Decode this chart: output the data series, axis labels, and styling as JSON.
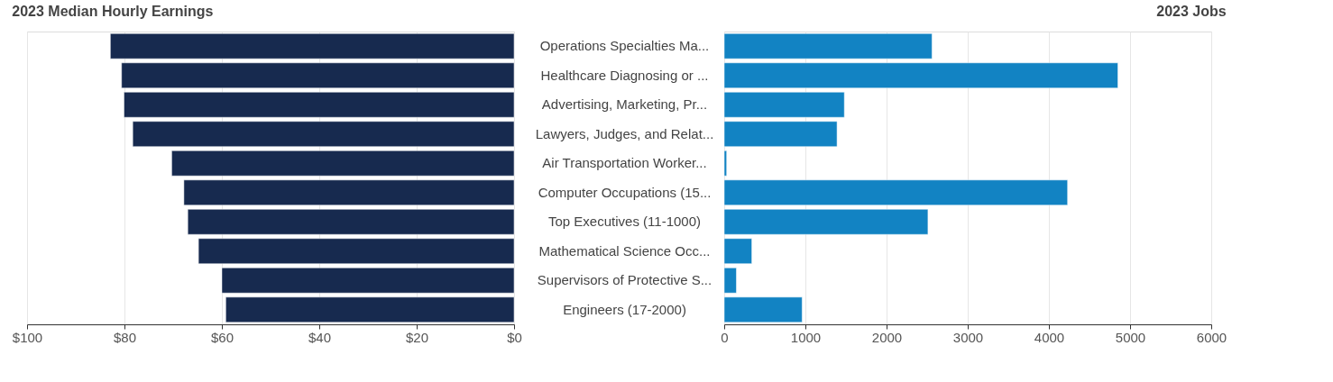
{
  "chart_data": [
    {
      "type": "bar",
      "orientation": "horizontal",
      "title": "2023 Median Hourly Earnings",
      "categories": [
        "Operations Specialties Ma...",
        "Healthcare Diagnosing or ...",
        "Advertising, Marketing, Pr...",
        "Lawyers, Judges, and Relat...",
        "Air Transportation Worker...",
        "Computer Occupations (15...",
        "Top Executives (11-1000)",
        "Mathematical Science Occ...",
        "Supervisors of Protective S...",
        "Engineers (17-2000)"
      ],
      "values": [
        82.9,
        80.6,
        80.1,
        78.3,
        70.3,
        67.8,
        67.0,
        64.8,
        60.0,
        59.2
      ],
      "color": "#172a4f",
      "xlim": [
        100,
        0
      ],
      "xticks": [
        {
          "value": 100,
          "label": "$100"
        },
        {
          "value": 80,
          "label": "$80"
        },
        {
          "value": 60,
          "label": "$60"
        },
        {
          "value": 40,
          "label": "$40"
        },
        {
          "value": 20,
          "label": "$20"
        },
        {
          "value": 0,
          "label": "$0"
        }
      ],
      "grid": "x"
    },
    {
      "type": "bar",
      "orientation": "horizontal",
      "title": "2023 Jobs",
      "categories": [
        null,
        null,
        null,
        null,
        null,
        null,
        null,
        null,
        null,
        null
      ],
      "values": [
        2560,
        4850,
        1480,
        1390,
        30,
        4230,
        2510,
        340,
        150,
        960
      ],
      "color": "#1283c3",
      "xlim": [
        0,
        6000
      ],
      "xticks": [
        0,
        1000,
        2000,
        3000,
        4000,
        5000,
        6000
      ],
      "grid": "x",
      "tick_labels": "x"
    }
  ]
}
